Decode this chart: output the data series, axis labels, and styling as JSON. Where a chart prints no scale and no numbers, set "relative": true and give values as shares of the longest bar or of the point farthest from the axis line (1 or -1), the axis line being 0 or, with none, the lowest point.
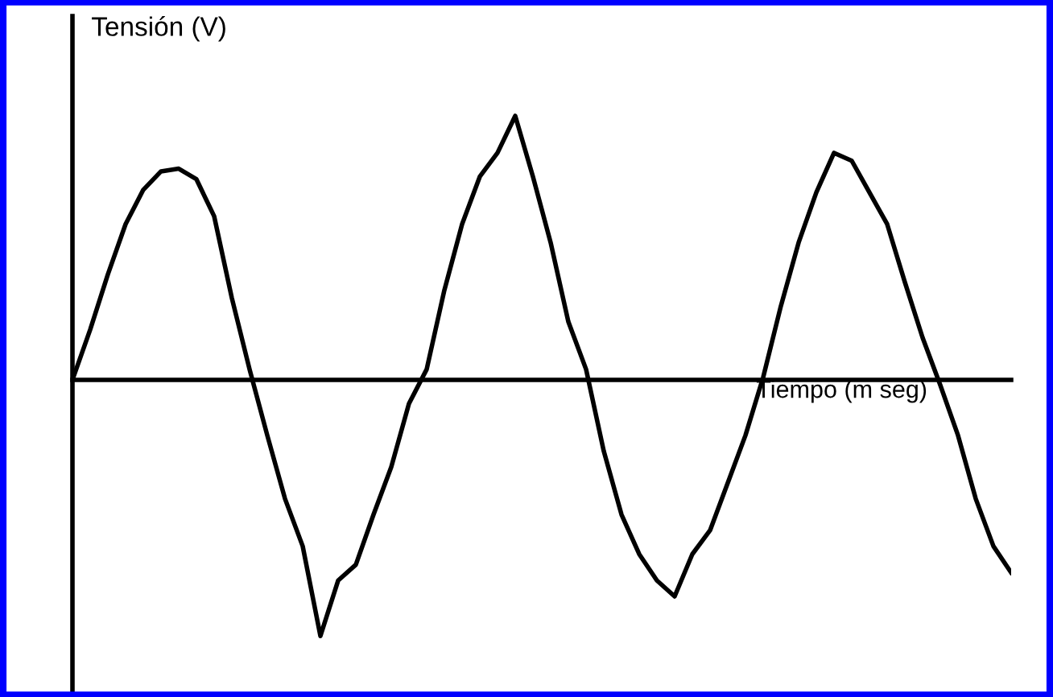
{
  "chart_data": {
    "type": "line",
    "relative": true,
    "xlabel": "Tiempo (m seg)",
    "ylabel": "Tensión (V)",
    "categories": [
      null,
      null,
      null,
      null,
      null,
      null,
      null,
      null,
      null,
      null,
      null,
      null,
      null,
      null,
      null,
      null,
      null,
      null,
      null,
      null,
      null,
      null,
      null,
      null,
      null,
      null,
      null,
      null,
      null,
      null,
      null,
      null,
      null,
      null,
      null,
      null,
      null,
      null,
      null,
      null,
      null,
      null,
      null,
      null,
      null,
      null,
      null,
      null,
      null,
      null,
      null,
      null,
      null,
      null
    ],
    "series": [
      {
        "color": "#000000",
        "values": [
          0,
          0.19,
          0.4,
          0.59,
          0.72,
          0.79,
          0.8,
          0.76,
          0.62,
          0.31,
          0.04,
          -0.21,
          -0.45,
          -0.63,
          -0.97,
          -0.76,
          -0.7,
          -0.51,
          -0.33,
          -0.09,
          0.04,
          0.34,
          0.59,
          0.77,
          0.86,
          1.0,
          0.77,
          0.52,
          0.22,
          0.04,
          -0.27,
          -0.51,
          -0.66,
          -0.76,
          -0.82,
          -0.66,
          -0.57,
          -0.39,
          -0.21,
          0.01,
          0.28,
          0.52,
          0.71,
          0.86,
          0.83,
          0.71,
          0.59,
          0.37,
          0.16,
          -0.02,
          -0.21,
          -0.45,
          -0.63,
          -0.73
        ]
      }
    ],
    "legend": false,
    "marker": "none",
    "line_style": "solid"
  }
}
